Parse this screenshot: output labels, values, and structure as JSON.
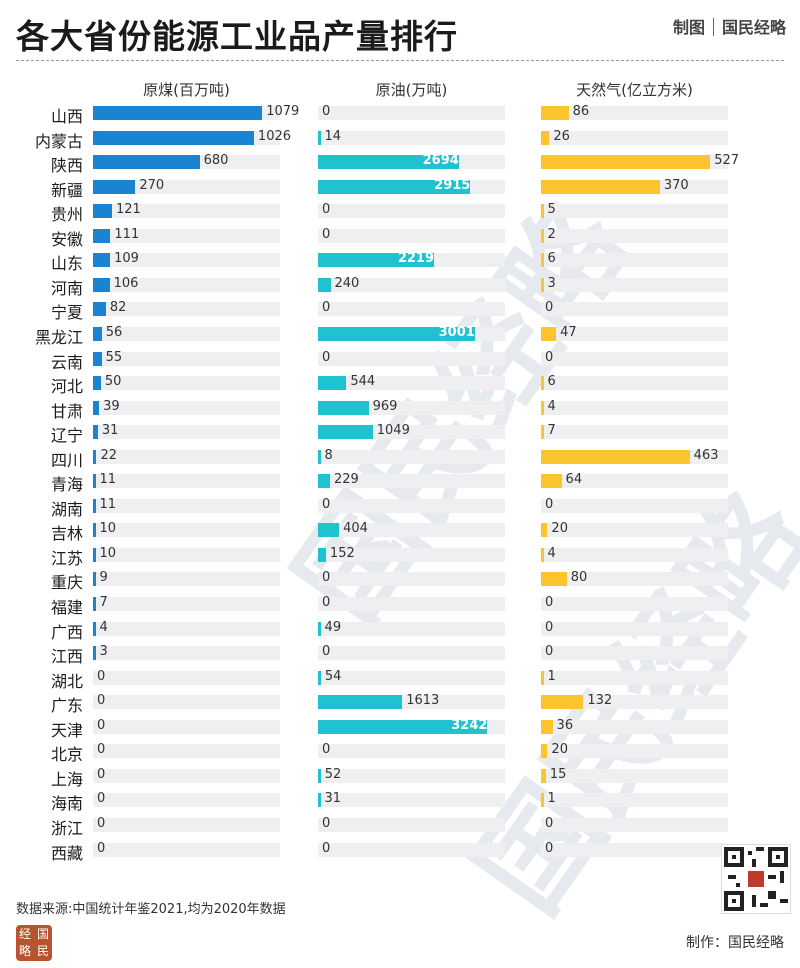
{
  "title": "各大省份能源工业品产量排行",
  "brand": {
    "left": "制图",
    "right": "国民经略"
  },
  "watermark_text": "国民经略",
  "footer": {
    "source": "数据来源:中国统计年鉴2021,均为2020年数据",
    "made_by": "制作：国民经略",
    "logo_chars": [
      "经",
      "国",
      "略",
      "民"
    ]
  },
  "colors": {
    "coal": "#1a84d2",
    "oil": "#1ec3cf",
    "gas": "#fcc52e",
    "track": "#efeff1"
  },
  "chart_data": {
    "type": "bar",
    "title": "各大省份能源工业品产量排行",
    "categories": [
      "山西",
      "内蒙古",
      "陕西",
      "新疆",
      "贵州",
      "安徽",
      "山东",
      "河南",
      "宁夏",
      "黑龙江",
      "云南",
      "河北",
      "甘肃",
      "辽宁",
      "四川",
      "青海",
      "湖南",
      "吉林",
      "江苏",
      "重庆",
      "福建",
      "广西",
      "江西",
      "湖北",
      "广东",
      "天津",
      "北京",
      "上海",
      "海南",
      "浙江",
      "西藏"
    ],
    "series": [
      {
        "name": "原煤(百万吨)",
        "values": [
          1079,
          1026,
          680,
          270,
          121,
          111,
          109,
          106,
          82,
          56,
          55,
          50,
          39,
          31,
          22,
          11,
          11,
          10,
          10,
          9,
          7,
          4,
          3,
          0,
          0,
          0,
          0,
          0,
          0,
          0,
          0
        ]
      },
      {
        "name": "原油(万吨)",
        "values": [
          0,
          14,
          2694,
          2915,
          0,
          0,
          2219,
          240,
          0,
          3001,
          0,
          544,
          969,
          1049,
          8,
          229,
          0,
          404,
          152,
          0,
          0,
          49,
          0,
          54,
          1613,
          3242,
          0,
          52,
          31,
          0,
          0
        ]
      },
      {
        "name": "天然气(亿立方米)",
        "values": [
          86,
          26,
          527,
          370,
          5,
          2,
          6,
          3,
          0,
          47,
          0,
          6,
          4,
          7,
          463,
          64,
          0,
          20,
          4,
          80,
          0,
          0,
          0,
          1,
          132,
          36,
          20,
          15,
          1,
          0,
          0
        ]
      }
    ]
  }
}
